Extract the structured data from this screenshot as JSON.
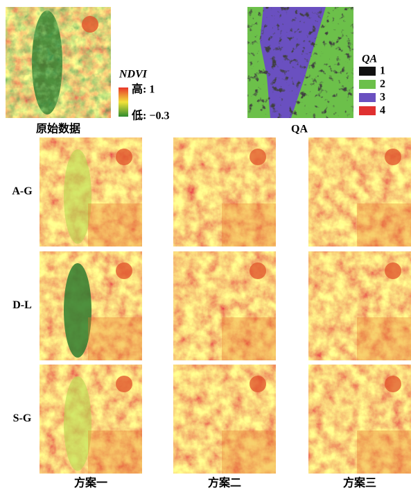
{
  "panels": {
    "original": "原始数据",
    "qa": "QA"
  },
  "ndvi_legend": {
    "title": "NDVI",
    "high": "高: 1",
    "low": "低: −0.3"
  },
  "qa_legend": {
    "title": "QA",
    "items": [
      {
        "label": "1",
        "color": "#111111"
      },
      {
        "label": "2",
        "color": "#6cc04a"
      },
      {
        "label": "3",
        "color": "#6a50c0"
      },
      {
        "label": "4",
        "color": "#e03030"
      }
    ]
  },
  "rows": [
    "A-G",
    "D-L",
    "S-G"
  ],
  "columns": [
    "方案一",
    "方案二",
    "方案三"
  ]
}
